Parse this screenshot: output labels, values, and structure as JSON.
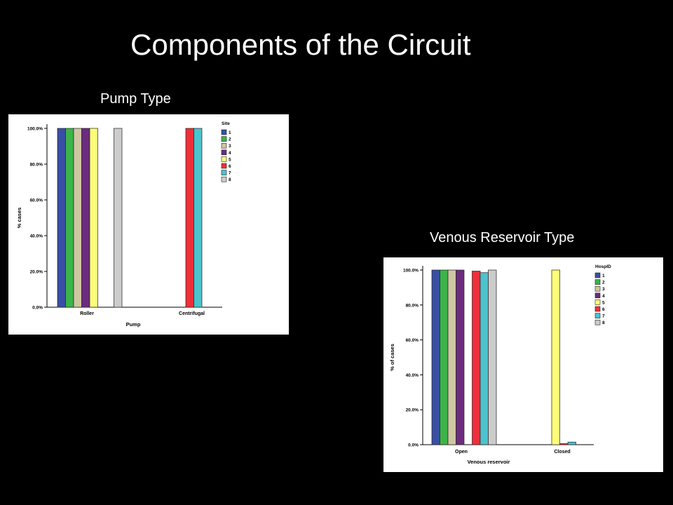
{
  "slide": {
    "title": "Components of the Circuit",
    "captions": {
      "pump": "Pump Type",
      "venous": "Venous Reservoir Type"
    }
  },
  "colors": {
    "series": [
      "#3a4fa3",
      "#3cb44b",
      "#cfc7a1",
      "#6b2c7e",
      "#fdfd7a",
      "#ef2f3a",
      "#4cc3cd",
      "#cccccc"
    ],
    "background": "#000000",
    "panel": "#ffffff"
  },
  "chart_data": [
    {
      "type": "bar",
      "xlabel": "Pump",
      "ylabel": "% cases",
      "categories": [
        "Roller",
        "Centrifugal"
      ],
      "legend_title": "Site",
      "legend_position": "right",
      "yticks": [
        "0.0%",
        "20.0%",
        "40.0%",
        "60.0%",
        "80.0%",
        "100.0%"
      ],
      "ylim": [
        0,
        100
      ],
      "series": [
        {
          "name": "1",
          "values": [
            100,
            0
          ]
        },
        {
          "name": "2",
          "values": [
            100,
            0
          ]
        },
        {
          "name": "3",
          "values": [
            100,
            0
          ]
        },
        {
          "name": "4",
          "values": [
            100,
            0
          ]
        },
        {
          "name": "5",
          "values": [
            100,
            0
          ]
        },
        {
          "name": "6",
          "values": [
            0,
            100
          ]
        },
        {
          "name": "7",
          "values": [
            0,
            100
          ]
        },
        {
          "name": "8",
          "values": [
            100,
            0
          ]
        }
      ]
    },
    {
      "type": "bar",
      "xlabel": "Venous reservoir",
      "ylabel": "% of cases",
      "categories": [
        "Open",
        "Closed"
      ],
      "legend_title": "HospID",
      "legend_position": "right",
      "yticks": [
        "0.0%",
        "20.0%",
        "40.0%",
        "60.0%",
        "80.0%",
        "100.0%"
      ],
      "ylim": [
        0,
        100
      ],
      "series": [
        {
          "name": "1",
          "values": [
            100,
            0
          ]
        },
        {
          "name": "2",
          "values": [
            100,
            0
          ]
        },
        {
          "name": "3",
          "values": [
            100,
            0
          ]
        },
        {
          "name": "4",
          "values": [
            100,
            0
          ]
        },
        {
          "name": "5",
          "values": [
            0,
            100
          ]
        },
        {
          "name": "6",
          "values": [
            99.4,
            0.6
          ]
        },
        {
          "name": "7",
          "values": [
            98.5,
            1.5
          ]
        },
        {
          "name": "8",
          "values": [
            100,
            0
          ]
        }
      ]
    }
  ]
}
